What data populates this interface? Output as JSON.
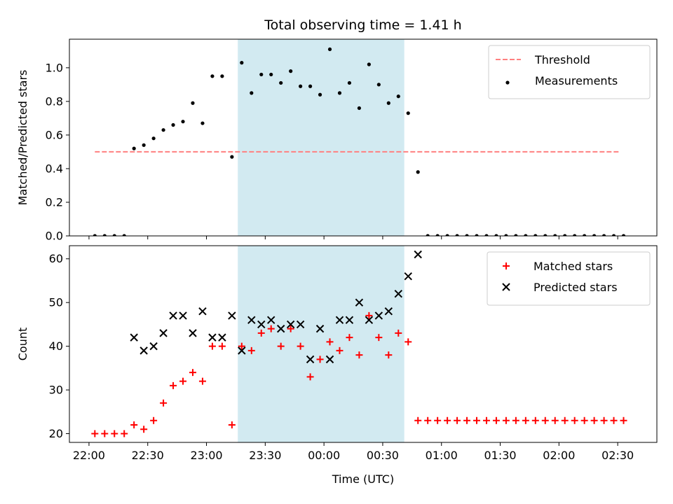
{
  "chart_data": {
    "title": "Total observing time = 1.41 h",
    "xlabel": "Time (UTC)",
    "x_axis": {
      "type": "time",
      "start": "22:00",
      "xlim": [
        "21:50",
        "02:50"
      ],
      "tick_labels": [
        "22:00",
        "22:30",
        "23:00",
        "23:30",
        "00:00",
        "00:30",
        "01:00",
        "01:30",
        "02:00",
        "02:30"
      ]
    },
    "shaded_interval": {
      "start": "23:16",
      "end": "00:41",
      "color": "#add8e6"
    },
    "panels": [
      {
        "type": "scatter",
        "ylabel": "Matched/Predicted stars",
        "ylim": [
          0,
          1.17
        ],
        "yticks": [
          "0.0",
          "0.2",
          "0.4",
          "0.6",
          "0.8",
          "1.0"
        ],
        "legend_position": "top-right",
        "threshold": {
          "name": "Threshold",
          "value": 0.5,
          "color": "#ff8080",
          "x_range": [
            "22:03",
            "02:31"
          ]
        },
        "series": [
          {
            "name": "Measurements",
            "color": "#000000",
            "marker": "dot",
            "x": [
              "22:03",
              "22:08",
              "22:13",
              "22:18",
              "22:23",
              "22:28",
              "22:33",
              "22:38",
              "22:43",
              "22:48",
              "22:53",
              "22:58",
              "23:03",
              "23:08",
              "23:13",
              "23:18",
              "23:23",
              "23:28",
              "23:33",
              "23:38",
              "23:43",
              "23:48",
              "23:53",
              "23:58",
              "00:03",
              "00:08",
              "00:13",
              "00:18",
              "00:23",
              "00:28",
              "00:33",
              "00:38",
              "00:43",
              "00:48",
              "00:53",
              "00:58",
              "01:03",
              "01:08",
              "01:13",
              "01:18",
              "01:23",
              "01:28",
              "01:33",
              "01:38",
              "01:43",
              "01:48",
              "01:53",
              "01:58",
              "02:03",
              "02:08",
              "02:13",
              "02:18",
              "02:23",
              "02:28",
              "02:33"
            ],
            "y": [
              0,
              0,
              0,
              0,
              0.52,
              0.54,
              0.58,
              0.63,
              0.66,
              0.68,
              0.79,
              0.67,
              0.95,
              0.95,
              0.47,
              1.03,
              0.85,
              0.96,
              0.96,
              0.91,
              0.98,
              0.89,
              0.89,
              0.84,
              1.11,
              0.85,
              0.91,
              0.76,
              1.02,
              0.9,
              0.79,
              0.83,
              0.73,
              0.38,
              0,
              0,
              0,
              0,
              0,
              0,
              0,
              0,
              0,
              0,
              0,
              0,
              0,
              0,
              0,
              0,
              0,
              0,
              0,
              0,
              0
            ]
          }
        ]
      },
      {
        "type": "scatter",
        "ylabel": "Count",
        "ylim": [
          18,
          63
        ],
        "yticks": [
          "20",
          "30",
          "40",
          "50",
          "60"
        ],
        "legend_position": "top-right",
        "series": [
          {
            "name": "Matched stars",
            "color": "#ff0000",
            "marker": "plus",
            "x": [
              "22:03",
              "22:08",
              "22:13",
              "22:18",
              "22:23",
              "22:28",
              "22:33",
              "22:38",
              "22:43",
              "22:48",
              "22:53",
              "22:58",
              "23:03",
              "23:08",
              "23:13",
              "23:18",
              "23:23",
              "23:28",
              "23:33",
              "23:38",
              "23:43",
              "23:48",
              "23:53",
              "23:58",
              "00:03",
              "00:08",
              "00:13",
              "00:18",
              "00:23",
              "00:28",
              "00:33",
              "00:38",
              "00:43",
              "00:48",
              "00:53",
              "00:58",
              "01:03",
              "01:08",
              "01:13",
              "01:18",
              "01:23",
              "01:28",
              "01:33",
              "01:38",
              "01:43",
              "01:48",
              "01:53",
              "01:58",
              "02:03",
              "02:08",
              "02:13",
              "02:18",
              "02:23",
              "02:28",
              "02:33"
            ],
            "y": [
              20,
              20,
              20,
              20,
              22,
              21,
              23,
              27,
              31,
              32,
              34,
              32,
              40,
              40,
              22,
              40,
              39,
              43,
              44,
              40,
              44,
              40,
              33,
              37,
              41,
              39,
              42,
              38,
              47,
              42,
              38,
              43,
              41,
              23,
              23,
              23,
              23,
              23,
              23,
              23,
              23,
              23,
              23,
              23,
              23,
              23,
              23,
              23,
              23,
              23,
              23,
              23,
              23,
              23,
              23
            ]
          },
          {
            "name": "Predicted stars",
            "color": "#000000",
            "marker": "x",
            "x": [
              "22:23",
              "22:28",
              "22:33",
              "22:38",
              "22:43",
              "22:48",
              "22:53",
              "22:58",
              "23:03",
              "23:08",
              "23:13",
              "23:18",
              "23:23",
              "23:28",
              "23:33",
              "23:38",
              "23:43",
              "23:48",
              "23:53",
              "23:58",
              "00:03",
              "00:08",
              "00:13",
              "00:18",
              "00:23",
              "00:28",
              "00:33",
              "00:38",
              "00:43",
              "00:48"
            ],
            "y": [
              42,
              39,
              40,
              43,
              47,
              47,
              43,
              48,
              42,
              42,
              47,
              39,
              46,
              45,
              46,
              44,
              45,
              45,
              37,
              44,
              37,
              46,
              46,
              50,
              46,
              47,
              48,
              52,
              56,
              61
            ]
          }
        ]
      }
    ]
  }
}
